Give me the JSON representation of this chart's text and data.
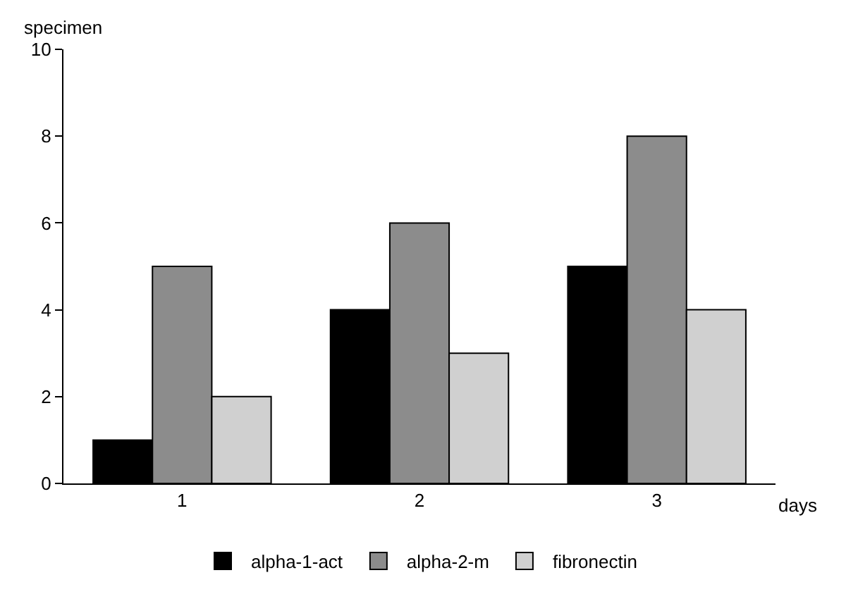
{
  "chart_data": {
    "type": "bar",
    "xlabel": "days",
    "ylabel": "specimen",
    "categories": [
      "1",
      "2",
      "3"
    ],
    "series": [
      {
        "name": "alpha-1-act",
        "color": "#000000",
        "values": [
          1,
          4,
          5
        ]
      },
      {
        "name": "alpha-2-m",
        "color": "#8c8c8c",
        "values": [
          5,
          6,
          8
        ]
      },
      {
        "name": "fibronectin",
        "color": "#d0d0d0",
        "values": [
          2,
          3,
          4
        ]
      }
    ],
    "ylim": [
      0,
      10
    ],
    "yticks": [
      0,
      2,
      4,
      6,
      8,
      10
    ],
    "grid": false,
    "legend": "bottom"
  }
}
